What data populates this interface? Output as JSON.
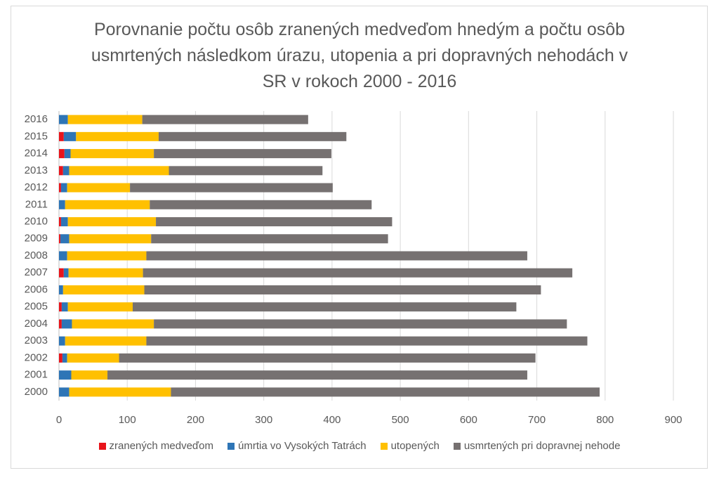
{
  "chart_data": {
    "type": "stacked_bar_horizontal",
    "title": "Porovnanie počtu osôb zranených medveďom hnedým a počtu osôb usmrtených následkom úrazu, utopenia a pri dopravných nehodách v SR v rokoch 2000 - 2016",
    "categories": [
      "2000",
      "2001",
      "2002",
      "2003",
      "2004",
      "2005",
      "2006",
      "2007",
      "2008",
      "2009",
      "2010",
      "2011",
      "2012",
      "2013",
      "2014",
      "2015",
      "2016"
    ],
    "series": [
      {
        "name": "zranených medveďom",
        "color": "#e8141b",
        "values": [
          0,
          0,
          5,
          0,
          4,
          4,
          0,
          7,
          0,
          2,
          3,
          0,
          3,
          6,
          8,
          7,
          0
        ]
      },
      {
        "name": "úmrtia vo Vysokých Tatrách",
        "color": "#2e75b6",
        "values": [
          15,
          18,
          7,
          9,
          15,
          9,
          6,
          7,
          12,
          13,
          10,
          9,
          9,
          9,
          9,
          18,
          13
        ]
      },
      {
        "name": "utopených",
        "color": "#ffc000",
        "values": [
          149,
          53,
          76,
          119,
          120,
          95,
          119,
          109,
          116,
          120,
          129,
          124,
          92,
          146,
          122,
          121,
          109
        ]
      },
      {
        "name": "usmrtených pri dopravnej nehode",
        "color": "#767171",
        "values": [
          628,
          615,
          610,
          646,
          605,
          562,
          581,
          629,
          558,
          347,
          346,
          325,
          297,
          225,
          260,
          275,
          243
        ]
      }
    ],
    "xlim": [
      0,
      900
    ],
    "xticks": [
      0,
      100,
      200,
      300,
      400,
      500,
      600,
      700,
      800,
      900
    ],
    "grid": true,
    "legend": "bottom"
  }
}
